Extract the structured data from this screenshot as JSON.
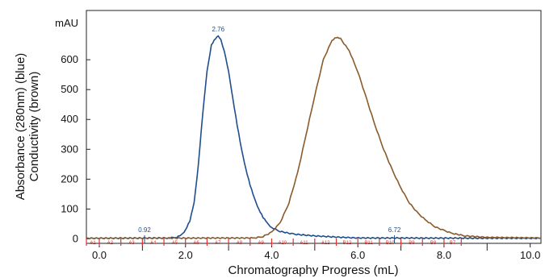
{
  "chart_data": {
    "type": "line",
    "xlabel": "Chromatography Progress (mL)",
    "ylabel_line1": "Absorbance (280nm) (blue)",
    "ylabel_line2": "Conductivity (brown)",
    "y_unit": "mAU",
    "xlim": [
      -0.3,
      10.25
    ],
    "ylim": [
      -15,
      765
    ],
    "x_ticks": [
      "0.0",
      "2.0",
      "4.0",
      "6.0",
      "8.0",
      "10.0"
    ],
    "y_ticks": [
      "0",
      "100",
      "200",
      "300",
      "400",
      "500",
      "600"
    ],
    "grid": false,
    "legend": "none",
    "series": [
      {
        "color": "#1f4e8c",
        "points": [
          [
            -0.3,
            2
          ],
          [
            1.6,
            3
          ],
          [
            1.8,
            6
          ],
          [
            1.9,
            12
          ],
          [
            2.0,
            30
          ],
          [
            2.1,
            60
          ],
          [
            2.2,
            120
          ],
          [
            2.3,
            250
          ],
          [
            2.4,
            420
          ],
          [
            2.5,
            560
          ],
          [
            2.6,
            650
          ],
          [
            2.7,
            672
          ],
          [
            2.76,
            678
          ],
          [
            2.82,
            668
          ],
          [
            2.9,
            630
          ],
          [
            3.0,
            560
          ],
          [
            3.1,
            470
          ],
          [
            3.2,
            380
          ],
          [
            3.3,
            300
          ],
          [
            3.4,
            235
          ],
          [
            3.5,
            180
          ],
          [
            3.6,
            135
          ],
          [
            3.7,
            100
          ],
          [
            3.8,
            72
          ],
          [
            3.9,
            52
          ],
          [
            4.0,
            38
          ],
          [
            4.2,
            25
          ],
          [
            4.5,
            16
          ],
          [
            5.0,
            10
          ],
          [
            5.5,
            6
          ],
          [
            6.0,
            3
          ],
          [
            10.25,
            2
          ]
        ]
      },
      {
        "color": "#8b5a2b",
        "points": [
          [
            -0.3,
            2
          ],
          [
            3.6,
            3
          ],
          [
            3.8,
            8
          ],
          [
            4.0,
            22
          ],
          [
            4.2,
            55
          ],
          [
            4.4,
            120
          ],
          [
            4.6,
            220
          ],
          [
            4.8,
            350
          ],
          [
            5.0,
            480
          ],
          [
            5.2,
            600
          ],
          [
            5.4,
            665
          ],
          [
            5.5,
            675
          ],
          [
            5.6,
            670
          ],
          [
            5.8,
            630
          ],
          [
            6.0,
            560
          ],
          [
            6.2,
            470
          ],
          [
            6.4,
            380
          ],
          [
            6.6,
            300
          ],
          [
            6.8,
            230
          ],
          [
            7.0,
            170
          ],
          [
            7.2,
            120
          ],
          [
            7.4,
            85
          ],
          [
            7.6,
            60
          ],
          [
            7.8,
            40
          ],
          [
            8.0,
            28
          ],
          [
            8.2,
            18
          ],
          [
            8.5,
            10
          ],
          [
            9.0,
            5
          ],
          [
            10.25,
            3
          ]
        ]
      }
    ],
    "peak_labels": [
      {
        "x": 2.76,
        "y": 678,
        "text": "2.76"
      },
      {
        "x": 1.05,
        "y": 5,
        "text": "0.92"
      },
      {
        "x": 6.85,
        "y": 5,
        "text": "6.72"
      }
    ],
    "fraction_marker_x": [
      -0.3,
      0.0,
      0.5,
      1.0,
      1.5,
      2.0,
      2.5,
      3.0,
      3.5,
      4.0,
      4.5,
      5.0,
      5.5,
      6.0,
      6.5,
      7.0,
      7.5,
      8.0,
      8.4
    ],
    "fraction_labels": [
      "A1",
      "A2",
      "A3",
      "A4",
      "A5",
      "A6",
      "A7",
      "A8",
      "A9",
      "A10",
      "A11",
      "A12",
      "B12",
      "B11",
      "B10",
      "B9",
      "B8",
      "B7"
    ],
    "colors": {
      "absorbance": "#1f4e8c",
      "conductivity": "#8b5a2b",
      "fractions": "#e03030",
      "peak_label": "#1f4e8c"
    }
  }
}
